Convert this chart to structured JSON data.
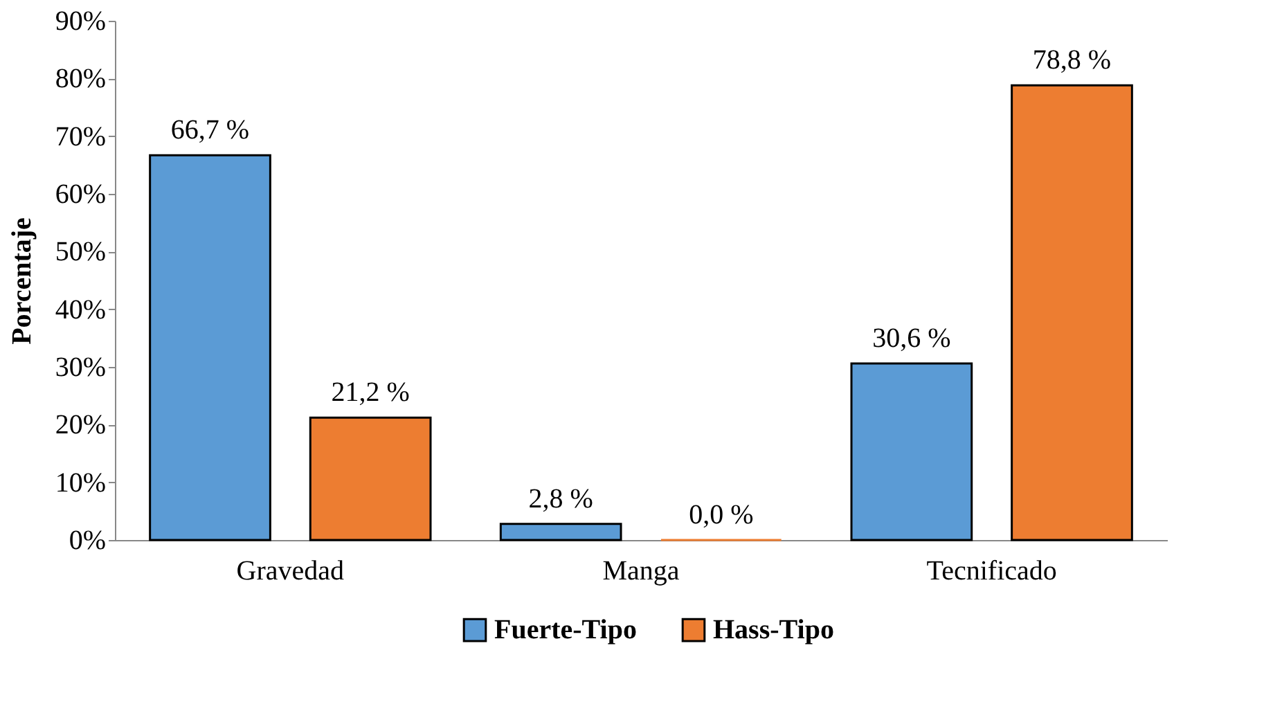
{
  "chart_data": {
    "type": "bar",
    "ylabel": "Porcentaje",
    "categories": [
      "Gravedad",
      "Manga",
      "Tecnificado"
    ],
    "series": [
      {
        "name": "Fuerte-Tipo",
        "color": "#5b9bd5",
        "values": [
          66.7,
          2.8,
          30.6
        ],
        "value_labels": [
          "66,7 %",
          "2,8 %",
          "30,6 %"
        ]
      },
      {
        "name": "Hass-Tipo",
        "color": "#ed7d31",
        "values": [
          21.2,
          0.0,
          78.8
        ],
        "value_labels": [
          "21,2 %",
          "0,0 %",
          "78,8 %"
        ]
      }
    ],
    "ylim": [
      0,
      90
    ],
    "yticks": [
      {
        "value": 0,
        "label": "0%"
      },
      {
        "value": 10,
        "label": "10%"
      },
      {
        "value": 20,
        "label": "20%"
      },
      {
        "value": 30,
        "label": "30%"
      },
      {
        "value": 40,
        "label": "40%"
      },
      {
        "value": 50,
        "label": "50%"
      },
      {
        "value": 60,
        "label": "60%"
      },
      {
        "value": 70,
        "label": "70%"
      },
      {
        "value": 80,
        "label": "80%"
      },
      {
        "value": 90,
        "label": "90%"
      }
    ],
    "grid": false,
    "legend": "bottom"
  }
}
